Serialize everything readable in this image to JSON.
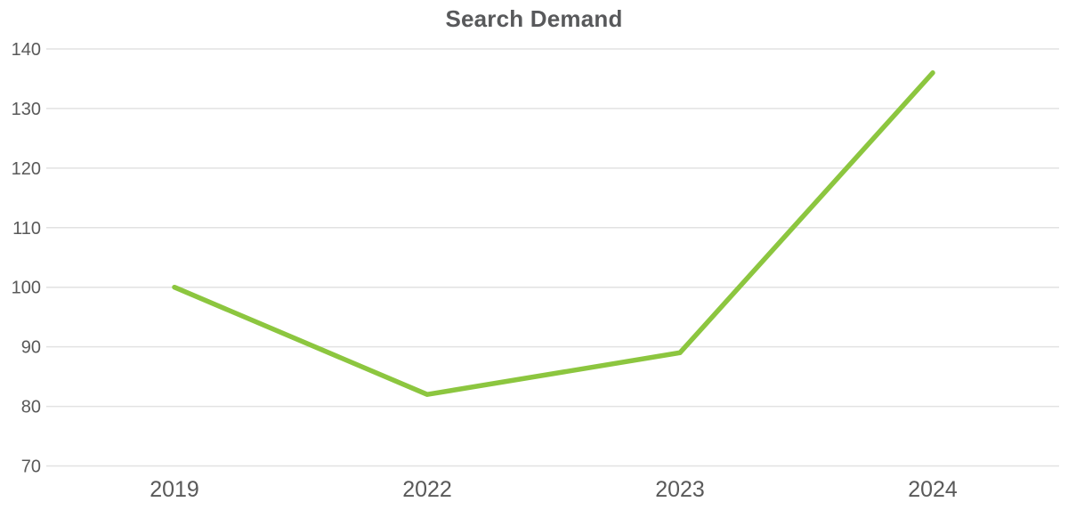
{
  "chart_data": {
    "type": "line",
    "title": "Search Demand",
    "categories": [
      "2019",
      "2022",
      "2023",
      "2024"
    ],
    "series": [
      {
        "name": "Search Demand",
        "values": [
          100,
          82,
          89,
          136
        ]
      }
    ],
    "xlabel": "",
    "ylabel": "",
    "ylim": [
      70,
      140
    ],
    "ytick_step": 10,
    "yticks": [
      70,
      80,
      90,
      100,
      110,
      120,
      130,
      140
    ],
    "grid": "horizontal-only",
    "legend": "none",
    "markers": "none",
    "colors": {
      "line": "#8CC63F",
      "grid": "#E2E2E2",
      "tick_text": "#595959",
      "title_text": "#58595B",
      "background": "#FFFFFF"
    }
  }
}
